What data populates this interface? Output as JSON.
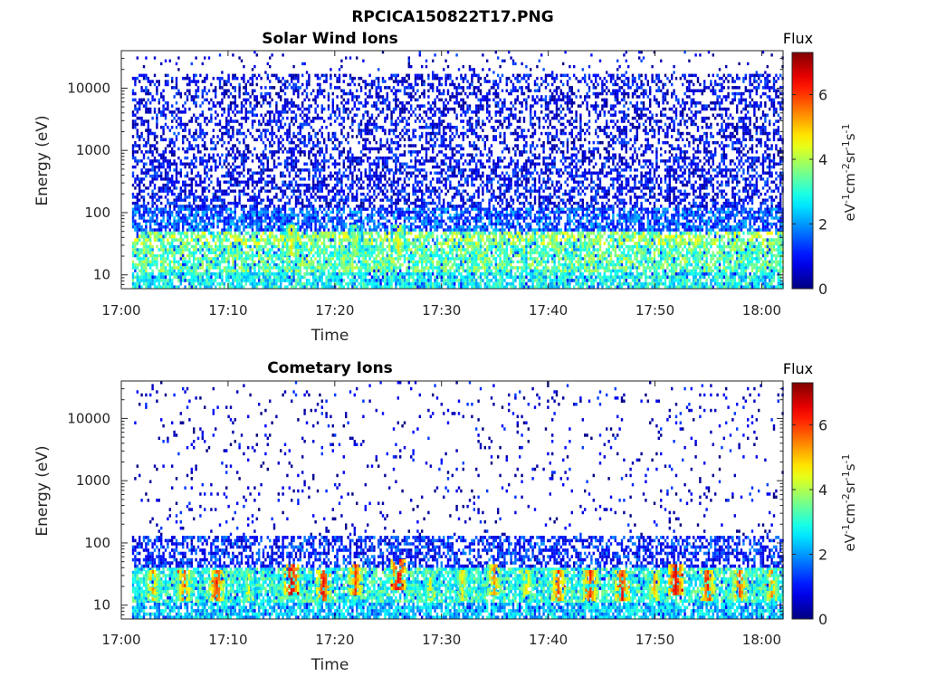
{
  "figure": {
    "title": "RPCICA150822T17.PNG"
  },
  "colors": {
    "axis": "#262626",
    "background": "#ffffff",
    "colormap": "jet"
  },
  "chart_data": [
    {
      "type": "heatmap",
      "title": "Solar Wind Ions",
      "xlabel": "Time",
      "ylabel": "Energy (eV)",
      "x_range": [
        "17:00",
        "18:02"
      ],
      "y_range": [
        6,
        40000
      ],
      "y_scale": "log",
      "x_ticks": [
        "17:00",
        "17:10",
        "17:20",
        "17:30",
        "17:40",
        "17:50",
        "18:00"
      ],
      "y_ticks": [
        "10",
        "100",
        "1000",
        "10000"
      ],
      "grid": false,
      "colorbar": {
        "title": "Flux",
        "unit_base": "eV",
        "unit_parts": [
          "-1",
          "cm",
          "-2",
          "sr",
          "-1",
          "s",
          "-1"
        ],
        "range": [
          0,
          7.3
        ],
        "ticks": [
          "0",
          "2",
          "4",
          "6"
        ]
      },
      "bands": [
        {
          "e_min": 6,
          "e_max": 11,
          "flux": 2.8
        },
        {
          "e_min": 11,
          "e_max": 30,
          "flux": 3.4
        },
        {
          "e_min": 30,
          "e_max": 50,
          "flux": 3.8
        },
        {
          "e_min": 50,
          "e_max": 120,
          "flux": 1.6
        },
        {
          "e_min": 120,
          "e_max": 800,
          "flux": 0.9
        },
        {
          "e_min": 800,
          "e_max": 17000,
          "flux": 0.8
        },
        {
          "e_min": 17000,
          "e_max": 40000,
          "flux": 0.7
        }
      ],
      "highlights": [
        {
          "time": "17:16",
          "energy": 35,
          "flux": 5.0
        },
        {
          "time": "17:22",
          "energy": 35,
          "flux": 4.6
        },
        {
          "time": "17:26",
          "energy": 35,
          "flux": 5.0
        }
      ]
    },
    {
      "type": "heatmap",
      "title": "Cometary Ions",
      "xlabel": "Time",
      "ylabel": "Energy (eV)",
      "x_range": [
        "17:00",
        "18:02"
      ],
      "y_range": [
        6,
        40000
      ],
      "y_scale": "log",
      "x_ticks": [
        "17:00",
        "17:10",
        "17:20",
        "17:30",
        "17:40",
        "17:50",
        "18:00"
      ],
      "y_ticks": [
        "10",
        "100",
        "1000",
        "10000"
      ],
      "grid": false,
      "colorbar": {
        "title": "Flux",
        "unit_base": "eV",
        "unit_parts": [
          "-1",
          "cm",
          "-2",
          "sr",
          "-1",
          "s",
          "-1"
        ],
        "range": [
          0,
          7.3
        ],
        "ticks": [
          "0",
          "2",
          "4",
          "6"
        ]
      },
      "bands": [
        {
          "e_min": 6,
          "e_max": 11,
          "flux": 2.4
        },
        {
          "e_min": 11,
          "e_max": 40,
          "flux": 3.0
        },
        {
          "e_min": 40,
          "e_max": 130,
          "flux": 1.2
        },
        {
          "e_min": 130,
          "e_max": 40000,
          "flux": 0.6
        }
      ],
      "highlights": [
        {
          "time": "17:03",
          "energy": 20,
          "flux": 5.6
        },
        {
          "time": "17:06",
          "energy": 20,
          "flux": 6.0
        },
        {
          "time": "17:09",
          "energy": 20,
          "flux": 6.4
        },
        {
          "time": "17:12",
          "energy": 20,
          "flux": 4.6
        },
        {
          "time": "17:16",
          "energy": 25,
          "flux": 7.0
        },
        {
          "time": "17:19",
          "energy": 20,
          "flux": 6.6
        },
        {
          "time": "17:22",
          "energy": 25,
          "flux": 6.2
        },
        {
          "time": "17:26",
          "energy": 30,
          "flux": 7.0
        },
        {
          "time": "17:29",
          "energy": 20,
          "flux": 4.8
        },
        {
          "time": "17:32",
          "energy": 20,
          "flux": 5.0
        },
        {
          "time": "17:35",
          "energy": 25,
          "flux": 5.8
        },
        {
          "time": "17:38",
          "energy": 20,
          "flux": 5.2
        },
        {
          "time": "17:41",
          "energy": 20,
          "flux": 6.2
        },
        {
          "time": "17:44",
          "energy": 20,
          "flux": 6.4
        },
        {
          "time": "17:47",
          "energy": 20,
          "flux": 6.6
        },
        {
          "time": "17:50",
          "energy": 20,
          "flux": 5.4
        },
        {
          "time": "17:52",
          "energy": 25,
          "flux": 7.0
        },
        {
          "time": "17:55",
          "energy": 20,
          "flux": 6.4
        },
        {
          "time": "17:58",
          "energy": 20,
          "flux": 6.2
        },
        {
          "time": "18:01",
          "energy": 20,
          "flux": 5.6
        }
      ]
    }
  ]
}
